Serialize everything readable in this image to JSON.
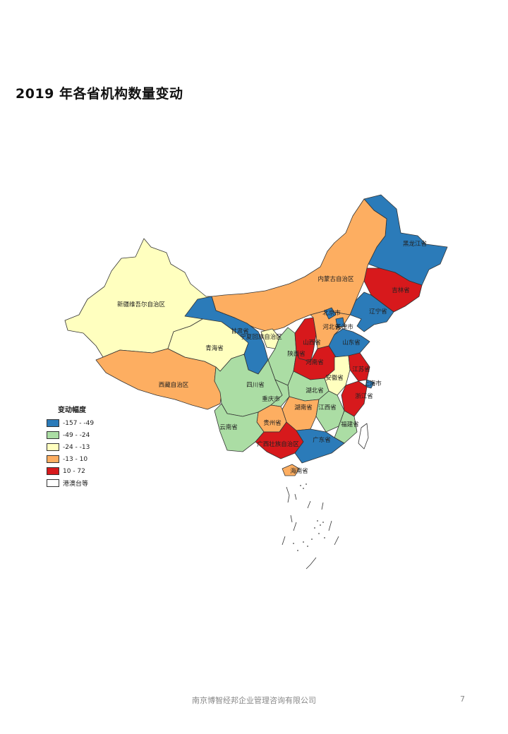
{
  "title": "2019 年各省机构数量变动",
  "legend": {
    "title": "变动幅度",
    "items": [
      {
        "label": "-157 - -49",
        "color": "#2b7bb9"
      },
      {
        "label": "-49 - -24",
        "color": "#abdda4"
      },
      {
        "label": "-24 - -13",
        "color": "#ffffbf"
      },
      {
        "label": "-13 - 10",
        "color": "#fdae61"
      },
      {
        "label": "10 - 72",
        "color": "#d7191c"
      },
      {
        "label": "港澳台等",
        "color": "#ffffff"
      }
    ]
  },
  "provinces": [
    {
      "name": "黑龙江省",
      "class": 0
    },
    {
      "name": "吉林省",
      "class": 4
    },
    {
      "name": "辽宁省",
      "class": 0
    },
    {
      "name": "内蒙古自治区",
      "class": 3
    },
    {
      "name": "新疆维吾尔自治区",
      "class": 2
    },
    {
      "name": "西藏自治区",
      "class": 3
    },
    {
      "name": "青海省",
      "class": 2
    },
    {
      "name": "甘肃省",
      "class": 0
    },
    {
      "name": "宁夏回族自治区",
      "class": 2
    },
    {
      "name": "陕西省",
      "class": 1
    },
    {
      "name": "山西省",
      "class": 4
    },
    {
      "name": "河北省",
      "class": 3
    },
    {
      "name": "北京市",
      "class": 0
    },
    {
      "name": "天津市",
      "class": 0
    },
    {
      "name": "山东省",
      "class": 0
    },
    {
      "name": "河南省",
      "class": 4
    },
    {
      "name": "安徽省",
      "class": 2
    },
    {
      "name": "江苏省",
      "class": 4
    },
    {
      "name": "上海市",
      "class": 0
    },
    {
      "name": "浙江省",
      "class": 4
    },
    {
      "name": "湖北省",
      "class": 1
    },
    {
      "name": "四川省",
      "class": 1
    },
    {
      "name": "重庆市",
      "class": 1
    },
    {
      "name": "湖南省",
      "class": 3
    },
    {
      "name": "江西省",
      "class": 1
    },
    {
      "name": "福建省",
      "class": 1
    },
    {
      "name": "贵州省",
      "class": 3
    },
    {
      "name": "云南省",
      "class": 1
    },
    {
      "name": "广西壮族自治区",
      "class": 4
    },
    {
      "name": "广东省",
      "class": 0
    },
    {
      "name": "海南省",
      "class": 3
    },
    {
      "name": "台湾省",
      "class": 5
    }
  ],
  "footer": {
    "company": "南京博智经邦企业管理咨询有限公司",
    "page_number": "7"
  }
}
